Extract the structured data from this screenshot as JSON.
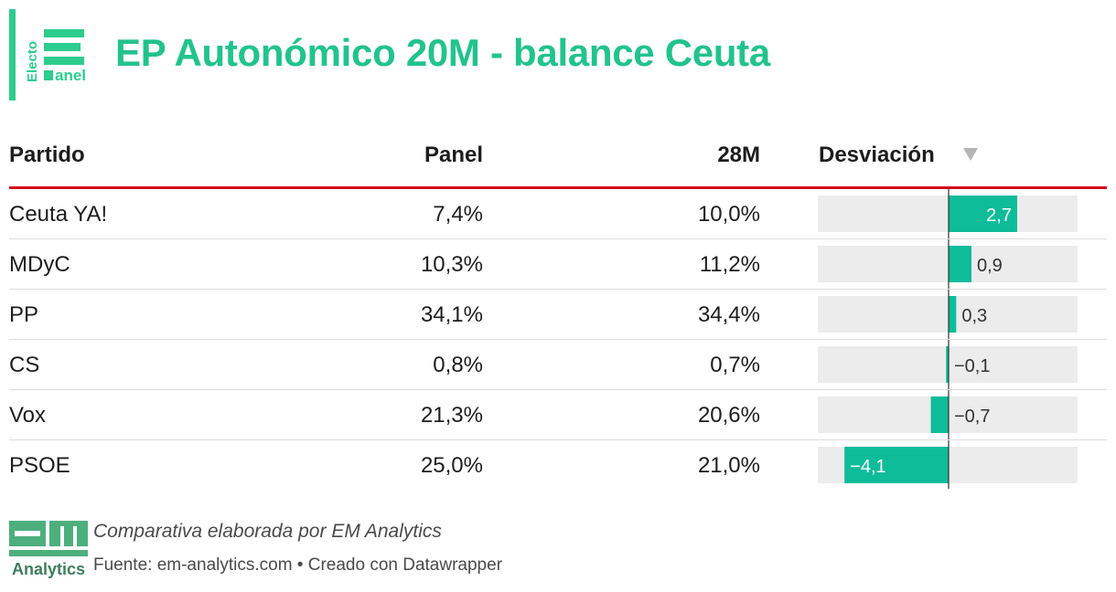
{
  "header": {
    "logo_text_top": "Electo",
    "logo_text_bottom": "anel",
    "title": "EP Autonómico 20M - balance Ceuta"
  },
  "table": {
    "columns": {
      "partido": "Partido",
      "panel": "Panel",
      "m28": "28M",
      "desviacion": "Desviación"
    }
  },
  "chart_data": {
    "type": "table",
    "title": "EP Autonómico 20M - balance Ceuta",
    "columns": [
      "Partido",
      "Panel",
      "28M",
      "Desviación"
    ],
    "rows": [
      {
        "partido": "Ceuta YA!",
        "panel": "7,4%",
        "m28": "10,0%",
        "desviacion": 2.7,
        "desviacion_label": "2,7"
      },
      {
        "partido": "MDyC",
        "panel": "10,3%",
        "m28": "11,2%",
        "desviacion": 0.9,
        "desviacion_label": "0,9"
      },
      {
        "partido": "PP",
        "panel": "34,1%",
        "m28": "34,4%",
        "desviacion": 0.3,
        "desviacion_label": "0,3"
      },
      {
        "partido": "CS",
        "panel": "0,8%",
        "m28": "0,7%",
        "desviacion": -0.1,
        "desviacion_label": "−0,1"
      },
      {
        "partido": "Vox",
        "panel": "21,3%",
        "m28": "20,6%",
        "desviacion": -0.7,
        "desviacion_label": "−0,7"
      },
      {
        "partido": "PSOE",
        "panel": "25,0%",
        "m28": "21,0%",
        "desviacion": -4.1,
        "desviacion_label": "−4,1"
      }
    ],
    "bar_range": [
      -5.15,
      5.15
    ],
    "bar_color": "#0ebc9a"
  },
  "footer": {
    "logo_text": "Analytics",
    "note": "Comparativa elaborada por EM Analytics",
    "source": "Fuente: em-analytics.com • Creado con Datawrapper"
  }
}
